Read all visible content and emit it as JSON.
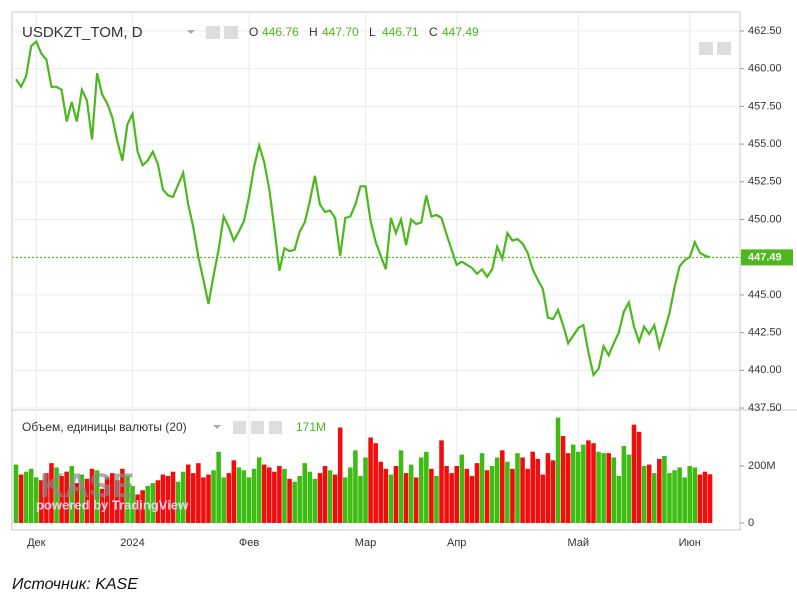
{
  "chart_data": [
    {
      "type": "line",
      "title": "USDKZT_TOM, D",
      "ohlc": [
        {
          "name": "O",
          "value": "446.76"
        },
        {
          "name": "H",
          "value": "447.70"
        },
        {
          "name": "L",
          "value": "446.71"
        },
        {
          "name": "C",
          "value": "447.49"
        }
      ],
      "color": "#4cb81e",
      "grid": true,
      "categories": [
        null,
        null,
        null,
        null,
        "Дек",
        null,
        null,
        null,
        null,
        null,
        null,
        null,
        null,
        null,
        null,
        null,
        null,
        null,
        null,
        null,
        null,
        null,
        null,
        "2024",
        null,
        null,
        null,
        null,
        null,
        null,
        null,
        null,
        null,
        null,
        null,
        null,
        null,
        null,
        null,
        null,
        null,
        null,
        null,
        null,
        null,
        null,
        "Фев",
        null,
        null,
        null,
        null,
        null,
        null,
        null,
        null,
        null,
        null,
        null,
        null,
        null,
        null,
        null,
        null,
        null,
        null,
        null,
        null,
        null,
        null,
        "Мар",
        null,
        null,
        null,
        null,
        null,
        null,
        null,
        null,
        null,
        null,
        null,
        null,
        null,
        null,
        null,
        null,
        null,
        "Апр",
        null,
        null,
        null,
        null,
        null,
        null,
        null,
        null,
        null,
        null,
        null,
        null,
        null,
        null,
        null,
        null,
        null,
        null,
        null,
        null,
        null,
        null,
        null,
        "Май",
        null,
        null,
        null,
        null,
        null,
        null,
        null,
        null,
        null,
        null,
        null,
        null,
        null,
        null,
        null,
        null,
        null,
        null,
        null,
        null,
        null,
        "Июн",
        null,
        null,
        null,
        null
      ],
      "values": [
        459.3,
        458.8,
        459.5,
        461.5,
        461.8,
        461.0,
        460.6,
        458.8,
        458.8,
        458.6,
        456.5,
        457.8,
        456.5,
        458.6,
        457.9,
        455.3,
        459.7,
        458.3,
        457.7,
        456.8,
        455.2,
        453.9,
        456.3,
        457.0,
        454.5,
        453.6,
        453.9,
        454.5,
        453.7,
        452.0,
        451.6,
        451.5,
        452.3,
        453.1,
        451.0,
        449.5,
        447.5,
        446.0,
        444.4,
        446.3,
        448.0,
        450.2,
        449.5,
        448.6,
        449.2,
        449.9,
        451.5,
        453.5,
        454.9,
        453.8,
        452.0,
        449.4,
        446.6,
        448.1,
        447.9,
        448.0,
        449.2,
        449.8,
        451.2,
        452.9,
        451.0,
        450.5,
        450.6,
        450.1,
        447.6,
        450.1,
        450.2,
        451.0,
        452.2,
        452.2,
        449.9,
        448.5,
        447.6,
        446.7,
        450.1,
        449.1,
        450.0,
        448.3,
        450.0,
        449.7,
        449.8,
        451.6,
        450.2,
        450.3,
        450.1,
        449.0,
        448.0,
        447.0,
        447.2,
        447.0,
        446.8,
        446.4,
        446.7,
        446.2,
        446.7,
        448.2,
        447.4,
        449.1,
        448.6,
        448.7,
        448.4,
        447.8,
        446.7,
        446.0,
        445.4,
        443.5,
        443.4,
        444.0,
        443.0,
        441.8,
        442.3,
        442.8,
        443.0,
        441.2,
        439.7,
        440.1,
        441.6,
        441.0,
        441.8,
        442.5,
        443.9,
        444.5,
        442.9,
        441.9,
        442.9,
        442.4,
        443.0,
        441.5,
        442.6,
        443.8,
        445.5,
        446.9,
        447.3,
        447.5,
        448.5,
        447.8,
        447.6,
        447.49
      ],
      "ylim": [
        437.37,
        463.76
      ],
      "yticks": [
        {
          "value": 437.5,
          "label": "437.50"
        },
        {
          "value": 440,
          "label": "440.00"
        },
        {
          "value": 442.5,
          "label": "442.50"
        },
        {
          "value": 445,
          "label": "445.00"
        },
        {
          "value": 447.5,
          "label": "447.50"
        },
        {
          "value": 450,
          "label": "450.00"
        },
        {
          "value": 452.5,
          "label": "452.50"
        },
        {
          "value": 455,
          "label": "455.00"
        },
        {
          "value": 457.5,
          "label": "457.50"
        },
        {
          "value": 460,
          "label": "460.00"
        },
        {
          "value": 462.5,
          "label": "462.50"
        }
      ],
      "last_price": {
        "value": 447.49,
        "label": "447.49"
      }
    },
    {
      "type": "bar",
      "title": "Объем, единицы валюты (20)",
      "up_color": "#3dbd12",
      "down_color": "#f20d0d",
      "values": [
        205,
        170,
        180,
        190,
        160,
        150,
        175,
        210,
        195,
        165,
        180,
        200,
        140,
        170,
        155,
        190,
        185,
        120,
        160,
        175,
        150,
        190,
        165,
        130,
        100,
        115,
        130,
        140,
        150,
        170,
        165,
        180,
        145,
        180,
        205,
        175,
        210,
        160,
        170,
        185,
        250,
        160,
        175,
        220,
        195,
        185,
        160,
        190,
        230,
        205,
        195,
        180,
        200,
        190,
        155,
        145,
        165,
        210,
        180,
        155,
        175,
        200,
        185,
        170,
        335,
        160,
        195,
        255,
        165,
        230,
        300,
        280,
        215,
        190,
        170,
        200,
        255,
        175,
        205,
        160,
        230,
        250,
        190,
        165,
        290,
        200,
        175,
        200,
        240,
        190,
        165,
        210,
        245,
        185,
        200,
        230,
        255,
        215,
        190,
        245,
        230,
        190,
        250,
        225,
        170,
        245,
        220,
        370,
        305,
        245,
        275,
        250,
        275,
        290,
        280,
        250,
        245,
        245,
        230,
        165,
        270,
        240,
        345,
        320,
        200,
        205,
        175,
        225,
        235,
        175,
        185,
        195,
        160,
        200,
        195,
        170,
        180,
        171
      ],
      "current_value": {
        "value": 171,
        "label": "171M"
      },
      "ylim": [
        -24.6,
        389.5
      ],
      "yticks": [
        0,
        {
          "value": 200,
          "label": "200M"
        }
      ]
    }
  ],
  "watermark": {
    "logo": "KASE",
    "text": "powered by TradingView"
  },
  "source": "Источник: KASE"
}
